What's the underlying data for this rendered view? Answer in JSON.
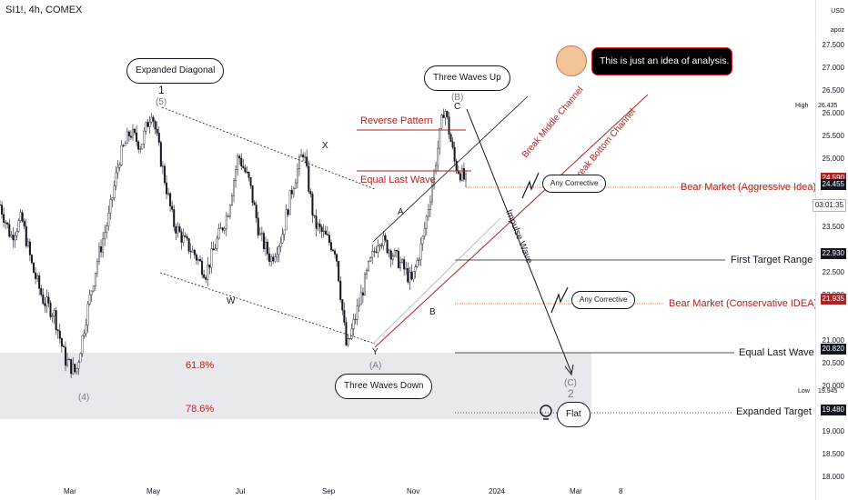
{
  "header": {
    "symbol": "SI1!, 4h, COMEX"
  },
  "axis": {
    "currency": "USD",
    "mode": "apoz"
  },
  "chart_data": {
    "type": "candlestick",
    "instrument": "SI1!",
    "interval": "4h",
    "exchange": "COMEX",
    "ylim": [
      18.0,
      28.0
    ],
    "y_ticks": [
      "27.500",
      "27.000",
      "26.500",
      "26.000",
      "25.500",
      "25.000",
      "24.000",
      "23.500",
      "22.500",
      "22.000",
      "21.000",
      "20.500",
      "20.000",
      "19.500",
      "19.000",
      "18.500",
      "18.000"
    ],
    "x_ticks": [
      "Mar",
      "May",
      "Jul",
      "Sep",
      "Nov",
      "2024",
      "Mar",
      "8"
    ],
    "price_path": [
      [
        "Jan-01",
        24.0
      ],
      [
        "Jan-10",
        23.3
      ],
      [
        "Jan-20",
        23.7
      ],
      [
        "Feb-01",
        22.6
      ],
      [
        "Feb-10",
        21.9
      ],
      [
        "Feb-20",
        21.6
      ],
      [
        "Mar-01",
        20.6
      ],
      [
        "Mar-08",
        20.3
      ],
      [
        "Mar-15",
        21.6
      ],
      [
        "Mar-22",
        22.8
      ],
      [
        "Apr-01",
        23.7
      ],
      [
        "Apr-10",
        25.0
      ],
      [
        "Apr-20",
        25.6
      ],
      [
        "May-01",
        25.3
      ],
      [
        "May-06",
        26.1
      ],
      [
        "May-15",
        24.8
      ],
      [
        "May-25",
        23.6
      ],
      [
        "Jun-05",
        23.2
      ],
      [
        "Jun-15",
        22.9
      ],
      [
        "Jun-23",
        22.5
      ],
      [
        "Jul-01",
        23.2
      ],
      [
        "Jul-10",
        23.8
      ],
      [
        "Jul-18",
        25.1
      ],
      [
        "Jul-25",
        24.5
      ],
      [
        "Aug-05",
        23.3
      ],
      [
        "Aug-15",
        22.8
      ],
      [
        "Aug-25",
        23.3
      ],
      [
        "Sep-01",
        24.4
      ],
      [
        "Sep-05",
        25.2
      ],
      [
        "Sep-12",
        23.6
      ],
      [
        "Sep-20",
        23.3
      ],
      [
        "Sep-28",
        23.0
      ],
      [
        "Oct-03",
        20.8
      ],
      [
        "Oct-10",
        21.7
      ],
      [
        "Oct-18",
        22.6
      ],
      [
        "Oct-25",
        23.3
      ],
      [
        "Nov-01",
        23.0
      ],
      [
        "Nov-08",
        22.7
      ],
      [
        "Nov-14",
        22.3
      ],
      [
        "Nov-20",
        23.2
      ],
      [
        "Nov-28",
        24.6
      ],
      [
        "Dec-04",
        26.2
      ],
      [
        "Dec-08",
        24.9
      ],
      [
        "Dec-12",
        24.5
      ]
    ],
    "current_price": 24.455,
    "countdown": "03:01:35",
    "high": {
      "label": "High",
      "value": "26.435"
    },
    "low": {
      "label": "Low",
      "value": "19.945"
    },
    "price_tags": [
      {
        "value": "24.590",
        "style": "red"
      },
      {
        "value": "24.455",
        "style": "dark"
      },
      {
        "value": "22.930",
        "style": "dark"
      },
      {
        "value": "21.935",
        "style": "red"
      },
      {
        "value": "20.820",
        "style": "dark"
      },
      {
        "value": "19.480",
        "style": "dark"
      }
    ],
    "levels": [
      {
        "name": "Bear Market (Aggressive Idea)",
        "price": 24.59,
        "color": "#b22222"
      },
      {
        "name": "First Target Range",
        "price": 22.93,
        "color": "#131722"
      },
      {
        "name": "Bear Market (Conservative IDEA)",
        "price": 21.935,
        "color": "#b22222"
      },
      {
        "name": "Equal Last Wave",
        "price": 20.82,
        "color": "#131722"
      },
      {
        "name": "Expanded Target",
        "price": 19.48,
        "color": "#131722"
      }
    ],
    "fib_zone": {
      "labels": [
        "61.8%",
        "78.6%"
      ]
    }
  },
  "annotations": {
    "expanded_diagonal": "Expanded Diagonal",
    "three_waves_up": "Three Waves Up",
    "three_waves_down": "Three Waves Down",
    "any_corrective_1": "Any Corrective",
    "any_corrective_2": "Any Corrective",
    "flat": "Flat",
    "note": "This is just an idea of analysis.",
    "reverse_pattern": "Reverse Pattern",
    "equal_last_wave_mid": "Equal Last Wave",
    "break_middle": "Break Middle Channel",
    "break_bottom": "Break Bottom Channel",
    "impulse_wave": "Impulse Wave"
  },
  "waves": {
    "w1": "1",
    "w5": "(5)",
    "w4": "(4)",
    "x": "X",
    "w": "W",
    "a": "A",
    "b": "B",
    "ca": "(A)",
    "cb": "(B)",
    "c": "C",
    "y": "Y",
    "cc": "(C)",
    "two": "2"
  }
}
